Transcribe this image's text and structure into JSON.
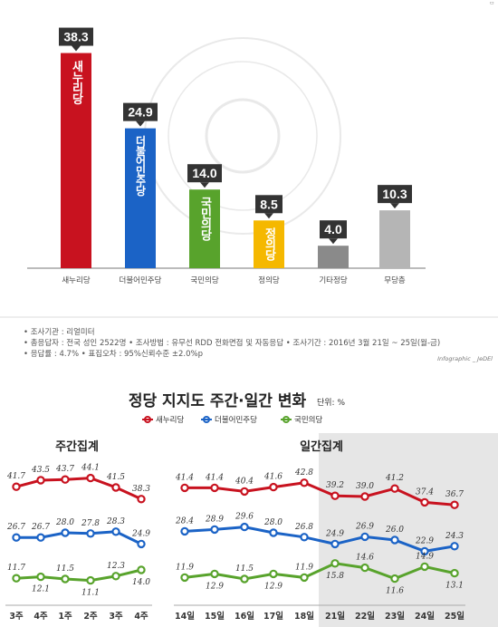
{
  "corner_mark": "ᄇ",
  "bar_chart": {
    "type": "bar",
    "categories": [
      "새누리당",
      "더불어민주당",
      "국민의당",
      "정의당",
      "기타정당",
      "무당층"
    ],
    "values": [
      38.3,
      24.9,
      14.0,
      8.5,
      4.0,
      10.3
    ],
    "value_labels": [
      "38.3",
      "24.9",
      "14.0",
      "8.5",
      "4.0",
      "10.3"
    ],
    "colors": [
      "#c8121f",
      "#1b63c6",
      "#58a32c",
      "#f5b800",
      "#8a8a8a",
      "#b5b5b5"
    ],
    "bar_inner_labels": [
      "새누리당",
      "더불어민주당",
      "국민의당",
      "정의당",
      "",
      ""
    ]
  },
  "notes": {
    "line1": "• 조사기관 : 리얼미터",
    "line2": "• 총응답자 : 전국 성인 2522명  • 조사방법 : 유무선 RDD 전화면접 및 자동응답  • 조사기간 : 2016년 3월 21일 ~ 25일(월-금)",
    "line3": "• 응답률 : 4.7%   • 표집오차 : 95%신뢰수준 ±2.0%p",
    "credit": "Infographic _ JeDEl"
  },
  "trend": {
    "title": "정당 지지도 주간·일간 변화",
    "unit": "단위: %",
    "weekly_title": "주간집계",
    "daily_title": "일간집계"
  },
  "chart_data": [
    {
      "type": "bar",
      "categories": [
        "새누리당",
        "더불어민주당",
        "국민의당",
        "정의당",
        "기타정당",
        "무당층"
      ],
      "values": [
        38.3,
        24.9,
        14.0,
        8.5,
        4.0,
        10.3
      ]
    },
    {
      "type": "line",
      "title": "주간집계",
      "x": [
        "3주",
        "4주",
        "1주",
        "2주",
        "3주",
        "4주"
      ],
      "series": [
        {
          "name": "새누리당",
          "color": "#c8121f",
          "values": [
            41.7,
            43.5,
            43.7,
            44.1,
            41.5,
            38.3
          ],
          "labels": [
            "41.7",
            "43.5",
            "43.7",
            "44.1",
            "41.5",
            "38.3"
          ]
        },
        {
          "name": "더불어민주당",
          "color": "#1b63c6",
          "values": [
            26.7,
            26.7,
            28.0,
            27.8,
            28.3,
            24.9
          ],
          "labels": [
            "26.7",
            "26.7",
            "28.0",
            "27.8",
            "28.3",
            "24.9"
          ]
        },
        {
          "name": "국민의당",
          "color": "#58a32c",
          "values": [
            11.7,
            12.1,
            11.5,
            11.1,
            12.3,
            14.0
          ],
          "labels": [
            "11.7",
            "12.1",
            "11.5",
            "11.1",
            "12.3",
            "14.0"
          ]
        }
      ]
    },
    {
      "type": "line",
      "title": "일간집계",
      "x": [
        "14일",
        "15일",
        "16일",
        "17일",
        "18일",
        "21일",
        "22일",
        "23일",
        "24일",
        "25일"
      ],
      "series": [
        {
          "name": "새누리당",
          "color": "#c8121f",
          "values": [
            41.4,
            41.4,
            40.4,
            41.6,
            42.8,
            39.2,
            39.0,
            41.2,
            37.4,
            36.7
          ],
          "labels": [
            "41.4",
            "41.4",
            "40.4",
            "41.6",
            "42.8",
            "39.2",
            "39.0",
            "41.2",
            "37.4",
            "36.7"
          ]
        },
        {
          "name": "더불어민주당",
          "color": "#1b63c6",
          "values": [
            28.4,
            28.9,
            29.6,
            28.0,
            26.8,
            24.9,
            26.9,
            26.0,
            22.9,
            24.3
          ],
          "labels": [
            "28.4",
            "28.9",
            "29.6",
            "28.0",
            "26.8",
            "24.9",
            "26.9",
            "26.0",
            "22.9",
            "24.3"
          ]
        },
        {
          "name": "국민의당",
          "color": "#58a32c",
          "values": [
            11.9,
            12.9,
            11.5,
            12.9,
            11.9,
            15.8,
            14.6,
            11.6,
            14.9,
            13.1
          ],
          "labels": [
            "11.9",
            "12.9",
            "11.5",
            "12.9",
            "11.9",
            "15.8",
            "14.6",
            "11.6",
            "14.9",
            "13.1"
          ]
        }
      ]
    }
  ]
}
